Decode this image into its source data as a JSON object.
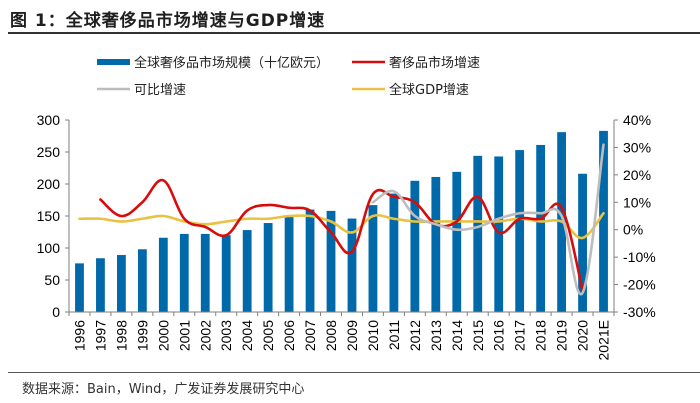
{
  "title": "图 1：全球奢侈品市场增速与GDP增速",
  "source": "数据来源：Bain，Wind，广发证券发展研究中心",
  "colors": {
    "bar": "#0069AA",
    "growth": "#D70C0C",
    "comparable": "#BDBDBD",
    "gdp": "#E9C244",
    "axis": "#7f7f7f"
  },
  "chart_data": {
    "type": "bar+line",
    "title": "全球奢侈品市场增速与GDP增速",
    "categories": [
      "1996",
      "1997",
      "1998",
      "1999",
      "2000",
      "2001",
      "2002",
      "2003",
      "2004",
      "2005",
      "2006",
      "2007",
      "2008",
      "2009",
      "2010",
      "2011",
      "2012",
      "2013",
      "2014",
      "2015",
      "2016",
      "2017",
      "2018",
      "2019",
      "2020",
      "2021E"
    ],
    "left_axis": {
      "min": 0,
      "max": 300,
      "step": 50,
      "ticks": [
        "0",
        "50",
        "100",
        "150",
        "200",
        "250",
        "300"
      ]
    },
    "right_axis": {
      "min": -30,
      "max": 40,
      "step": 10,
      "ticks": [
        "-30%",
        "-20%",
        "-10%",
        "0%",
        "10%",
        "20%",
        "30%",
        "40%"
      ]
    },
    "legend": [
      {
        "name": "全球奢侈品市场规模（十亿欧元）",
        "kind": "bar"
      },
      {
        "name": "奢侈品市场增速",
        "kind": "line"
      },
      {
        "name": "可比增速",
        "kind": "line"
      },
      {
        "name": "全球GDP增速",
        "kind": "line"
      }
    ],
    "series": [
      {
        "name": "全球奢侈品市场规模（十亿欧元）",
        "axis": "left",
        "type": "bar",
        "values": [
          76,
          84,
          89,
          98,
          116,
          122,
          122,
          120,
          128,
          139,
          150,
          160,
          158,
          146,
          167,
          185,
          205,
          211,
          219,
          244,
          243,
          253,
          261,
          281,
          216,
          283
        ]
      },
      {
        "name": "奢侈品市场增速",
        "axis": "right",
        "type": "line",
        "values": [
          null,
          11,
          5,
          10,
          18,
          4,
          1,
          -2,
          7,
          9,
          8,
          7,
          -1,
          -8,
          13,
          12,
          10,
          2,
          3,
          12,
          -1,
          4,
          4,
          8,
          -22,
          null
        ]
      },
      {
        "name": "可比增速",
        "axis": "right",
        "type": "line",
        "values": [
          null,
          null,
          null,
          null,
          null,
          null,
          null,
          null,
          null,
          null,
          null,
          null,
          null,
          null,
          10,
          14,
          5,
          2,
          0,
          1,
          4,
          6,
          6,
          5,
          -23,
          31
        ]
      },
      {
        "name": "全球GDP增速",
        "axis": "right",
        "type": "line",
        "values": [
          4,
          4,
          3,
          4,
          5,
          3,
          2,
          3,
          4,
          4,
          5,
          5,
          3,
          -1,
          5,
          4,
          3,
          3,
          3,
          3,
          3,
          4,
          3,
          3,
          -3,
          6
        ]
      }
    ]
  }
}
